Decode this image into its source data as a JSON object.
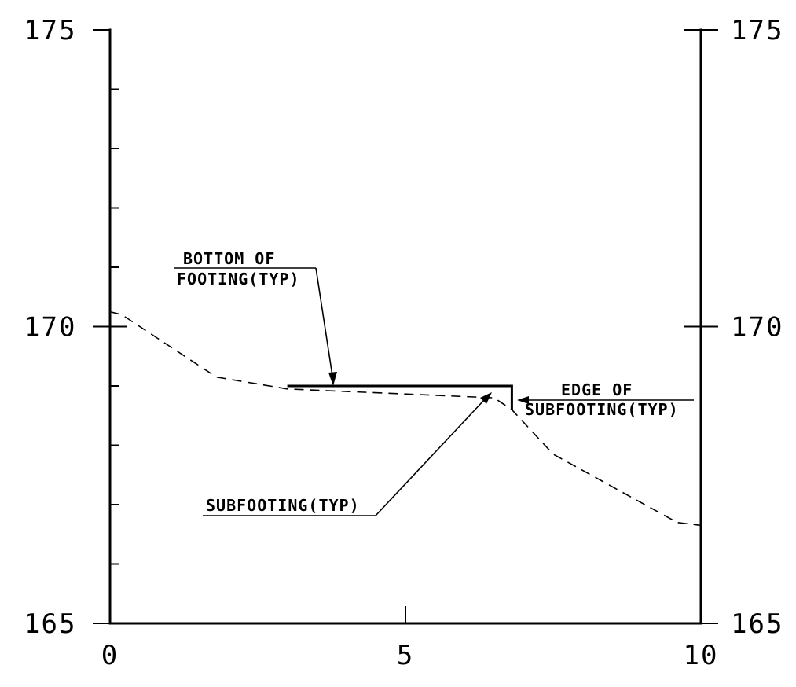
{
  "chart_data": {
    "type": "line",
    "xlim": [
      0,
      10
    ],
    "ylim": [
      165,
      175
    ],
    "x_ticks": [
      0,
      5,
      10
    ],
    "x_tick_labels": [
      "0",
      "5",
      "10"
    ],
    "y_ticks": [
      165,
      166,
      167,
      168,
      169,
      170,
      171,
      172,
      173,
      174,
      175
    ],
    "y_tick_labels": [
      {
        "value": 165,
        "label": "165"
      },
      {
        "value": 170,
        "label": "170"
      },
      {
        "value": 175,
        "label": "175"
      }
    ],
    "grid": false,
    "series": [
      {
        "style": "dashed",
        "x": [
          0,
          0.2,
          1.8,
          3.0,
          6.5,
          6.8,
          7.5,
          9.6,
          10
        ],
        "y": [
          170.25,
          170.2,
          169.15,
          168.95,
          168.8,
          168.6,
          167.85,
          166.7,
          166.65
        ]
      },
      {
        "style": "solid-thick",
        "x": [
          3.0,
          6.8,
          6.8
        ],
        "y": [
          169.0,
          169.0,
          168.6
        ]
      }
    ],
    "annotations": [
      {
        "id": "bottom_of_footing",
        "lines": [
          "BOTTOM OF",
          "FOOTING(TYP)"
        ],
        "points_to": {
          "x": 3.8,
          "y": 169.0
        }
      },
      {
        "id": "edge_of_subfooting",
        "lines": [
          "EDGE OF",
          "SUBFOOTING(TYP)"
        ],
        "points_to": {
          "x": 6.8,
          "y": 168.8
        }
      },
      {
        "id": "subfooting",
        "lines": [
          "SUBFOOTING(TYP)"
        ],
        "points_to": {
          "x": 6.5,
          "y": 168.85
        }
      }
    ]
  }
}
